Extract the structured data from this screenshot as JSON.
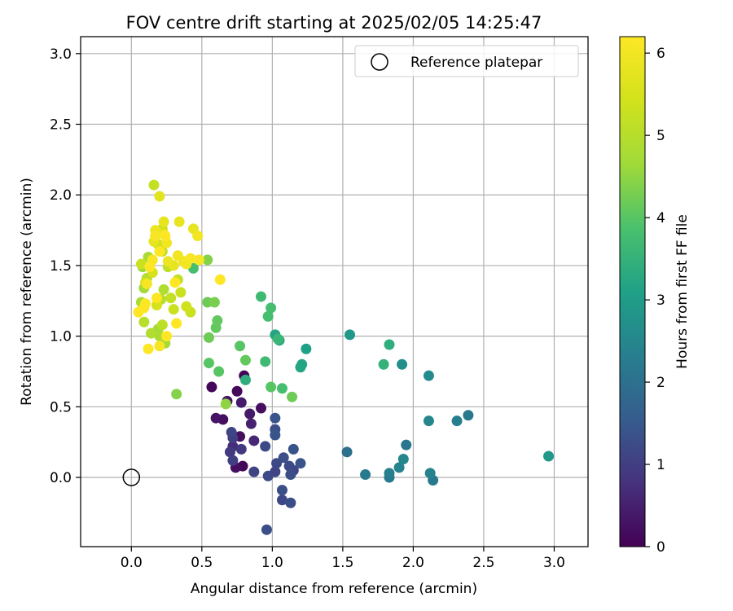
{
  "chart_data": {
    "type": "scatter",
    "title": "FOV centre drift starting at 2025/02/05 14:25:47",
    "xlabel": "Angular distance from reference (arcmin)",
    "ylabel": "Rotation from reference (arcmin)",
    "xlim": [
      -0.36,
      3.24
    ],
    "ylim": [
      -0.49,
      3.12
    ],
    "xticks": [
      0.0,
      0.5,
      1.0,
      1.5,
      2.0,
      2.5,
      3.0
    ],
    "xtick_labels": [
      "0.0",
      "0.5",
      "1.0",
      "1.5",
      "2.0",
      "2.5",
      "3.0"
    ],
    "yticks": [
      0.0,
      0.5,
      1.0,
      1.5,
      2.0,
      2.5,
      3.0
    ],
    "ytick_labels": [
      "0.0",
      "0.5",
      "1.0",
      "1.5",
      "2.0",
      "2.5",
      "3.0"
    ],
    "grid": true,
    "legend": {
      "position": "top-right",
      "entries": [
        {
          "label": "Reference platepar",
          "marker": "open-circle"
        }
      ]
    },
    "reference_point": {
      "x": 0.0,
      "y": 0.0,
      "label": "Reference platepar"
    },
    "colorbar": {
      "label": "Hours from first FF file",
      "colormap": "viridis",
      "range": [
        0,
        6.2
      ],
      "ticks": [
        0,
        1,
        2,
        3,
        4,
        5,
        6
      ],
      "tick_labels": [
        "0",
        "1",
        "2",
        "3",
        "4",
        "5",
        "6"
      ]
    },
    "points": [
      {
        "x": 0.57,
        "y": 0.64,
        "c": 0.1
      },
      {
        "x": 0.6,
        "y": 0.42,
        "c": 0.3
      },
      {
        "x": 0.65,
        "y": 0.41,
        "c": 0.2
      },
      {
        "x": 0.68,
        "y": 0.54,
        "c": 0.3
      },
      {
        "x": 0.75,
        "y": 0.61,
        "c": 0.1
      },
      {
        "x": 0.78,
        "y": 0.53,
        "c": 0.4
      },
      {
        "x": 0.74,
        "y": 0.07,
        "c": 0.2
      },
      {
        "x": 0.79,
        "y": 0.08,
        "c": 0.1
      },
      {
        "x": 0.77,
        "y": 0.29,
        "c": 0.2
      },
      {
        "x": 0.8,
        "y": 0.72,
        "c": 0.05
      },
      {
        "x": 0.84,
        "y": 0.45,
        "c": 0.4
      },
      {
        "x": 0.85,
        "y": 0.38,
        "c": 0.5
      },
      {
        "x": 0.92,
        "y": 0.49,
        "c": 0.2
      },
      {
        "x": 0.87,
        "y": 0.26,
        "c": 0.6
      },
      {
        "x": 0.72,
        "y": 0.22,
        "c": 0.7
      },
      {
        "x": 0.7,
        "y": 0.18,
        "c": 0.9
      },
      {
        "x": 0.72,
        "y": 0.12,
        "c": 1.0
      },
      {
        "x": 0.72,
        "y": 0.28,
        "c": 1.0
      },
      {
        "x": 0.71,
        "y": 0.32,
        "c": 1.1
      },
      {
        "x": 0.78,
        "y": 0.2,
        "c": 0.9
      },
      {
        "x": 0.87,
        "y": 0.04,
        "c": 1.1
      },
      {
        "x": 0.95,
        "y": 0.22,
        "c": 1.2
      },
      {
        "x": 0.96,
        "y": -0.37,
        "c": 1.3
      },
      {
        "x": 0.97,
        "y": 0.01,
        "c": 1.2
      },
      {
        "x": 1.02,
        "y": 0.04,
        "c": 1.1
      },
      {
        "x": 1.02,
        "y": 0.34,
        "c": 1.3
      },
      {
        "x": 1.02,
        "y": 0.3,
        "c": 1.4
      },
      {
        "x": 1.02,
        "y": 0.42,
        "c": 1.4
      },
      {
        "x": 1.03,
        "y": 0.1,
        "c": 1.2
      },
      {
        "x": 1.07,
        "y": -0.09,
        "c": 1.3
      },
      {
        "x": 1.07,
        "y": -0.16,
        "c": 1.2
      },
      {
        "x": 1.08,
        "y": 0.14,
        "c": 1.3
      },
      {
        "x": 1.12,
        "y": 0.08,
        "c": 1.2
      },
      {
        "x": 1.13,
        "y": 0.02,
        "c": 1.3
      },
      {
        "x": 1.13,
        "y": -0.18,
        "c": 1.3
      },
      {
        "x": 1.15,
        "y": 0.2,
        "c": 1.4
      },
      {
        "x": 1.15,
        "y": 0.05,
        "c": 1.1
      },
      {
        "x": 1.2,
        "y": 0.1,
        "c": 1.4
      },
      {
        "x": 1.53,
        "y": 0.18,
        "c": 2.0
      },
      {
        "x": 1.66,
        "y": 0.02,
        "c": 2.2
      },
      {
        "x": 1.83,
        "y": 0.03,
        "c": 2.3
      },
      {
        "x": 1.83,
        "y": 0.0,
        "c": 2.2
      },
      {
        "x": 1.9,
        "y": 0.07,
        "c": 2.4
      },
      {
        "x": 1.93,
        "y": 0.13,
        "c": 2.5
      },
      {
        "x": 1.95,
        "y": 0.23,
        "c": 2.1
      },
      {
        "x": 2.12,
        "y": 0.03,
        "c": 2.4
      },
      {
        "x": 2.14,
        "y": -0.02,
        "c": 2.2
      },
      {
        "x": 2.31,
        "y": 0.4,
        "c": 2.3
      },
      {
        "x": 2.39,
        "y": 0.44,
        "c": 2.2
      },
      {
        "x": 2.11,
        "y": 0.4,
        "c": 2.5
      },
      {
        "x": 2.11,
        "y": 0.72,
        "c": 2.6
      },
      {
        "x": 1.92,
        "y": 0.8,
        "c": 2.7
      },
      {
        "x": 1.55,
        "y": 1.01,
        "c": 2.9
      },
      {
        "x": 2.96,
        "y": 0.15,
        "c": 2.9
      },
      {
        "x": 1.83,
        "y": 0.94,
        "c": 3.4
      },
      {
        "x": 1.79,
        "y": 0.8,
        "c": 3.5
      },
      {
        "x": 1.24,
        "y": 0.91,
        "c": 3.1
      },
      {
        "x": 1.21,
        "y": 0.8,
        "c": 3.2
      },
      {
        "x": 1.2,
        "y": 0.78,
        "c": 3.2
      },
      {
        "x": 1.02,
        "y": 1.01,
        "c": 3.2
      },
      {
        "x": 1.05,
        "y": 0.97,
        "c": 3.3
      },
      {
        "x": 1.04,
        "y": 0.98,
        "c": 3.6
      },
      {
        "x": 0.92,
        "y": 1.28,
        "c": 3.7
      },
      {
        "x": 0.99,
        "y": 1.2,
        "c": 3.8
      },
      {
        "x": 0.97,
        "y": 1.14,
        "c": 3.8
      },
      {
        "x": 0.95,
        "y": 0.82,
        "c": 3.7
      },
      {
        "x": 0.81,
        "y": 0.69,
        "c": 3.4
      },
      {
        "x": 1.07,
        "y": 0.63,
        "c": 3.8
      },
      {
        "x": 0.99,
        "y": 0.64,
        "c": 4.0
      },
      {
        "x": 1.14,
        "y": 0.57,
        "c": 4.2
      },
      {
        "x": 0.77,
        "y": 0.93,
        "c": 4.0
      },
      {
        "x": 0.81,
        "y": 0.83,
        "c": 4.1
      },
      {
        "x": 0.62,
        "y": 0.75,
        "c": 4.0
      },
      {
        "x": 0.55,
        "y": 0.81,
        "c": 4.0
      },
      {
        "x": 0.55,
        "y": 0.99,
        "c": 4.2
      },
      {
        "x": 0.6,
        "y": 1.06,
        "c": 4.1
      },
      {
        "x": 0.61,
        "y": 1.11,
        "c": 4.1
      },
      {
        "x": 0.59,
        "y": 1.24,
        "c": 4.3
      },
      {
        "x": 0.54,
        "y": 1.24,
        "c": 4.2
      },
      {
        "x": 0.54,
        "y": 1.54,
        "c": 4.4
      },
      {
        "x": 0.44,
        "y": 1.48,
        "c": 3.8
      },
      {
        "x": 0.67,
        "y": 0.52,
        "c": 4.5
      },
      {
        "x": 0.32,
        "y": 0.59,
        "c": 4.4
      },
      {
        "x": 0.08,
        "y": 1.49,
        "c": 4.6
      },
      {
        "x": 0.12,
        "y": 1.56,
        "c": 4.8
      },
      {
        "x": 0.11,
        "y": 1.41,
        "c": 4.9
      },
      {
        "x": 0.09,
        "y": 1.34,
        "c": 4.7
      },
      {
        "x": 0.07,
        "y": 1.24,
        "c": 4.8
      },
      {
        "x": 0.09,
        "y": 1.1,
        "c": 5.0
      },
      {
        "x": 0.14,
        "y": 1.02,
        "c": 4.9
      },
      {
        "x": 0.19,
        "y": 1.05,
        "c": 4.7
      },
      {
        "x": 0.2,
        "y": 1.0,
        "c": 4.8
      },
      {
        "x": 0.24,
        "y": 0.95,
        "c": 4.7
      },
      {
        "x": 0.22,
        "y": 1.08,
        "c": 5.1
      },
      {
        "x": 0.21,
        "y": 1.26,
        "c": 5.0
      },
      {
        "x": 0.23,
        "y": 1.33,
        "c": 4.9
      },
      {
        "x": 0.26,
        "y": 1.49,
        "c": 5.1
      },
      {
        "x": 0.22,
        "y": 1.6,
        "c": 5.2
      },
      {
        "x": 0.19,
        "y": 1.65,
        "c": 5.3
      },
      {
        "x": 0.22,
        "y": 1.76,
        "c": 5.4
      },
      {
        "x": 0.16,
        "y": 2.07,
        "c": 5.2
      },
      {
        "x": 0.28,
        "y": 1.27,
        "c": 5.2
      },
      {
        "x": 0.3,
        "y": 1.19,
        "c": 5.3
      },
      {
        "x": 0.33,
        "y": 1.4,
        "c": 5.2
      },
      {
        "x": 0.35,
        "y": 1.31,
        "c": 5.3
      },
      {
        "x": 0.39,
        "y": 1.21,
        "c": 5.4
      },
      {
        "x": 0.42,
        "y": 1.17,
        "c": 5.3
      },
      {
        "x": 0.07,
        "y": 1.51,
        "c": 5.3
      },
      {
        "x": 0.1,
        "y": 1.38,
        "c": 5.4
      },
      {
        "x": 0.15,
        "y": 1.45,
        "c": 5.5
      },
      {
        "x": 0.18,
        "y": 1.22,
        "c": 5.5
      },
      {
        "x": 0.2,
        "y": 1.99,
        "c": 5.7
      },
      {
        "x": 0.23,
        "y": 1.81,
        "c": 5.8
      },
      {
        "x": 0.34,
        "y": 1.81,
        "c": 5.8
      },
      {
        "x": 0.44,
        "y": 1.76,
        "c": 5.8
      },
      {
        "x": 0.17,
        "y": 1.75,
        "c": 5.9
      },
      {
        "x": 0.16,
        "y": 1.67,
        "c": 5.8
      },
      {
        "x": 0.23,
        "y": 1.72,
        "c": 5.9
      },
      {
        "x": 0.26,
        "y": 1.53,
        "c": 5.9
      },
      {
        "x": 0.3,
        "y": 1.5,
        "c": 5.8
      },
      {
        "x": 0.33,
        "y": 1.57,
        "c": 6.0
      },
      {
        "x": 0.37,
        "y": 1.53,
        "c": 6.0
      },
      {
        "x": 0.39,
        "y": 1.51,
        "c": 6.0
      },
      {
        "x": 0.42,
        "y": 1.55,
        "c": 6.1
      },
      {
        "x": 0.48,
        "y": 1.54,
        "c": 6.1
      },
      {
        "x": 0.47,
        "y": 1.71,
        "c": 6.0
      },
      {
        "x": 0.25,
        "y": 1.66,
        "c": 6.0
      },
      {
        "x": 0.24,
        "y": 1.71,
        "c": 6.2
      },
      {
        "x": 0.17,
        "y": 1.71,
        "c": 6.1
      },
      {
        "x": 0.15,
        "y": 1.54,
        "c": 6.1
      },
      {
        "x": 0.13,
        "y": 1.49,
        "c": 6.2
      },
      {
        "x": 0.11,
        "y": 1.37,
        "c": 6.1
      },
      {
        "x": 0.18,
        "y": 1.27,
        "c": 6.2
      },
      {
        "x": 0.1,
        "y": 1.23,
        "c": 6.2
      },
      {
        "x": 0.09,
        "y": 1.2,
        "c": 6.2
      },
      {
        "x": 0.05,
        "y": 1.17,
        "c": 6.2
      },
      {
        "x": 0.12,
        "y": 0.91,
        "c": 6.2
      },
      {
        "x": 0.2,
        "y": 0.93,
        "c": 6.1
      },
      {
        "x": 0.25,
        "y": 1.0,
        "c": 6.2
      },
      {
        "x": 0.32,
        "y": 1.09,
        "c": 6.2
      },
      {
        "x": 0.31,
        "y": 1.38,
        "c": 6.2
      },
      {
        "x": 0.63,
        "y": 1.4,
        "c": 6.2
      },
      {
        "x": 0.2,
        "y": 1.6,
        "c": 6.2
      }
    ]
  }
}
